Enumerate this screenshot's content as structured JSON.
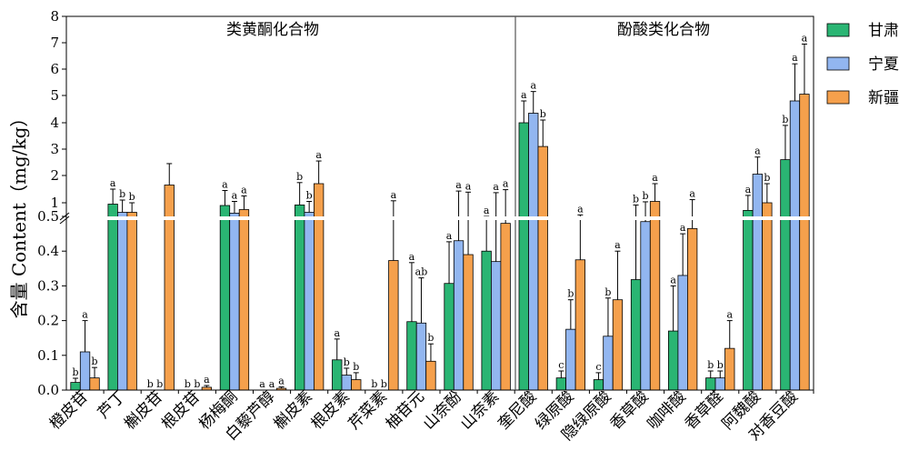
{
  "chart_data": {
    "type": "bar",
    "ylabel": "含量 Content（mg/kg）",
    "axis_break": {
      "lower_range": [
        0,
        0.5
      ],
      "upper_range": [
        0.5,
        8
      ]
    },
    "ylim": [
      0,
      8
    ],
    "yticks_lower": [
      "0.0",
      "0.1",
      "0.2",
      "0.3",
      "0.4"
    ],
    "yticks_upper": [
      "0.5",
      "1",
      "2",
      "3",
      "4",
      "5",
      "6",
      "7",
      "8"
    ],
    "groups": [
      {
        "title": "类黄酮化合物",
        "category_count": 12
      },
      {
        "title": "酚酸类化合物",
        "category_count": 8
      }
    ],
    "categories": [
      "橙皮苷",
      "芦丁",
      "槲皮苷",
      "根皮苷",
      "杨梅酮",
      "白藜芦醇",
      "槲皮素",
      "根皮素",
      "芹菜素",
      "柚苷元",
      "山奈酚",
      "山奈素",
      "奎尼酸",
      "绿原酸",
      "隐绿原酸",
      "香草酸",
      "咖啡酸",
      "香草醛",
      "阿魏酸",
      "对香豆酸"
    ],
    "series": [
      {
        "name": "甘肃",
        "color": "#2ab573",
        "values": [
          0.022,
          0.95,
          0,
          0,
          0.9,
          0,
          0.92,
          0.087,
          0,
          0.197,
          0.307,
          0.4,
          4.0,
          0.035,
          0.03,
          0.318,
          0.17,
          0.035,
          0.72,
          2.6
        ],
        "errors": [
          0.012,
          0.55,
          0,
          0,
          0.55,
          0,
          0.82,
          0.06,
          0,
          0.17,
          0.12,
          0.1,
          0.8,
          0.02,
          0.02,
          0.6,
          0.13,
          0.02,
          0.55,
          1.3
        ],
        "sig": [
          "b",
          "a",
          "b",
          "b",
          "a",
          "a",
          "b",
          "a",
          "b",
          "a",
          "a",
          "a",
          "a",
          "c",
          "c",
          "b",
          "a",
          "b",
          "a",
          "b"
        ]
      },
      {
        "name": "宁夏",
        "color": "#92b6f0",
        "values": [
          0.11,
          0.65,
          0,
          0,
          0.62,
          0,
          0.65,
          0.043,
          0,
          0.193,
          0.43,
          0.37,
          4.35,
          0.175,
          0.155,
          0.485,
          0.33,
          0.035,
          2.05,
          4.8
        ],
        "errors": [
          0.09,
          0.45,
          0,
          0,
          0.43,
          0,
          0.4,
          0.02,
          0,
          0.13,
          1.0,
          1.0,
          0.8,
          0.085,
          0.11,
          0.55,
          0.12,
          0.02,
          0.65,
          1.4
        ],
        "sig": [
          "a",
          "b",
          "b",
          "b",
          "a",
          "a",
          "b",
          "b",
          "b",
          "ab",
          "a",
          "a",
          "a",
          "b",
          "b",
          "b",
          "a",
          "b",
          "a",
          "a"
        ]
      },
      {
        "name": "新疆",
        "color": "#f5a04c",
        "values": [
          0.035,
          0.65,
          1.65,
          0.008,
          0.75,
          0.005,
          1.7,
          0.03,
          0.373,
          0.083,
          0.39,
          0.48,
          3.1,
          0.375,
          0.26,
          1.05,
          0.465,
          0.12,
          1.0,
          5.05
        ],
        "errors": [
          0.03,
          0.35,
          0.8,
          0.005,
          0.5,
          0.004,
          0.85,
          0.02,
          0.7,
          0.05,
          1.0,
          1.0,
          1.0,
          0.18,
          0.14,
          0.65,
          0.65,
          0.08,
          0.7,
          1.9
        ],
        "sig": [
          "b",
          "b",
          "",
          "a",
          "a",
          "a",
          "a",
          "b",
          "a",
          "b",
          "a",
          "a",
          "b",
          "a",
          "a",
          "a",
          "a",
          "a",
          "b",
          "a"
        ]
      }
    ],
    "legend": {
      "position": "right",
      "entries": [
        "甘肃",
        "宁夏",
        "新疆"
      ]
    }
  }
}
